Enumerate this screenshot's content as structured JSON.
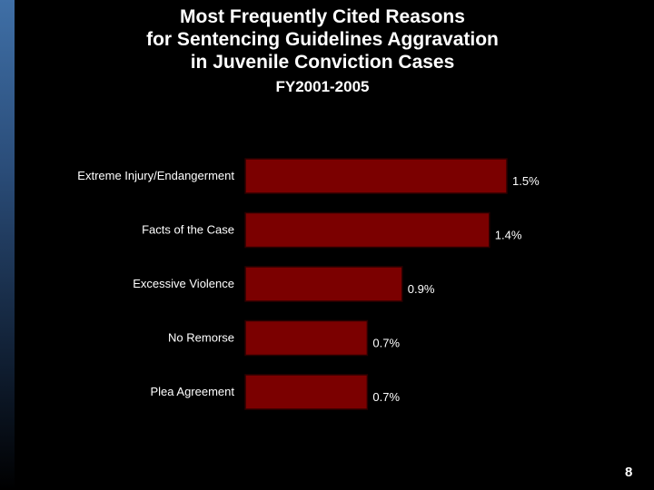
{
  "slide": {
    "title_lines": [
      "Most Frequently Cited Reasons",
      "for Sentencing Guidelines Aggravation",
      "in Juvenile Conviction Cases"
    ],
    "subtitle": "FY2001-2005",
    "page_number": "8"
  },
  "colors": {
    "background": "#000000",
    "bar_fill": "#7b0000",
    "bar_stroke": "#2a0000",
    "text": "#ffffff"
  },
  "chart_data": {
    "type": "bar",
    "orientation": "horizontal",
    "categories": [
      "Extreme Injury/Endangerment",
      "Facts of the Case",
      "Excessive Violence",
      "No Remorse",
      "Plea Agreement"
    ],
    "values": [
      1.5,
      1.4,
      0.9,
      0.7,
      0.7
    ],
    "value_labels": [
      "1.5%",
      "1.4%",
      "0.9%",
      "0.7%",
      "0.7%"
    ],
    "unit": "%",
    "grid": false,
    "legend": "none"
  }
}
